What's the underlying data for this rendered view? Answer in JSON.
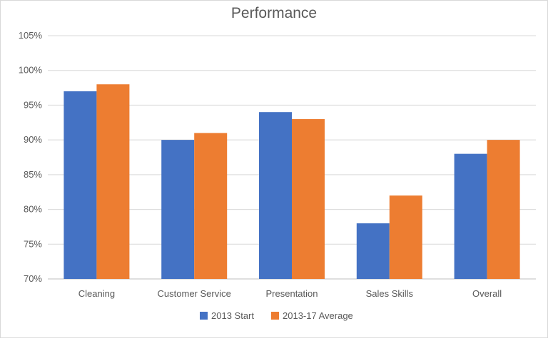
{
  "chart_data": {
    "type": "bar",
    "title": "Performance",
    "xlabel": "",
    "ylabel": "",
    "categories": [
      "Cleaning",
      "Customer Service",
      "Presentation",
      "Sales Skills",
      "Overall"
    ],
    "series": [
      {
        "name": "2013 Start",
        "values": [
          97,
          90,
          94,
          78,
          88
        ],
        "color": "#4472c4"
      },
      {
        "name": "2013-17 Average",
        "values": [
          98,
          91,
          93,
          82,
          90
        ],
        "color": "#ed7d31"
      }
    ],
    "ylim": [
      70,
      105
    ],
    "yticks": [
      70,
      75,
      80,
      85,
      90,
      95,
      100,
      105
    ],
    "ytick_labels": [
      "70%",
      "75%",
      "80%",
      "85%",
      "90%",
      "95%",
      "100%",
      "105%"
    ],
    "grid": true,
    "legend_position": "bottom"
  }
}
